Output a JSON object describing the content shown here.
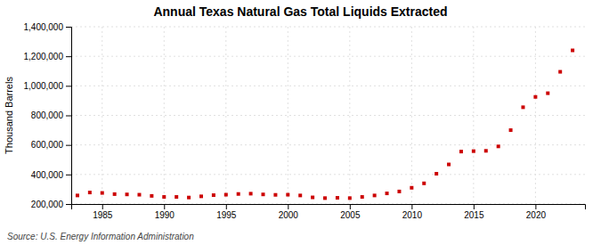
{
  "chart_data": {
    "type": "scatter",
    "title": "Annual Texas Natural Gas Total Liquids Extracted",
    "ylabel": "Thousand Barrels",
    "source": "Source: U.S. Energy Information Administration",
    "x": [
      1983,
      1984,
      1985,
      1986,
      1987,
      1988,
      1989,
      1990,
      1991,
      1992,
      1993,
      1994,
      1995,
      1996,
      1997,
      1998,
      1999,
      2000,
      2001,
      2002,
      2003,
      2004,
      2005,
      2006,
      2007,
      2008,
      2009,
      2010,
      2011,
      2012,
      2013,
      2014,
      2015,
      2016,
      2017,
      2018,
      2019,
      2020,
      2021,
      2022,
      2023
    ],
    "values": [
      258000,
      278000,
      275000,
      267000,
      265000,
      263000,
      255000,
      248000,
      248000,
      244000,
      252000,
      260000,
      263000,
      268000,
      270000,
      265000,
      262000,
      263000,
      258000,
      245000,
      240000,
      242000,
      240000,
      248000,
      258000,
      272000,
      285000,
      310000,
      340000,
      405000,
      468000,
      555000,
      558000,
      560000,
      590000,
      700000,
      855000,
      925000,
      950000,
      1095000,
      1240000
    ],
    "color": "#cc0000",
    "marker": "square",
    "grid": true,
    "xlim": [
      1982.5,
      2024
    ],
    "ylim": [
      200000,
      1400000
    ],
    "xticks": [
      1985,
      1990,
      1995,
      2000,
      2005,
      2010,
      2015,
      2020
    ],
    "yticks": [
      {
        "value": 200000,
        "label": "200,000"
      },
      {
        "value": 400000,
        "label": "400,000"
      },
      {
        "value": 600000,
        "label": "600,000"
      },
      {
        "value": 800000,
        "label": "800,000"
      },
      {
        "value": 1000000,
        "label": "1,000,000"
      },
      {
        "value": 1200000,
        "label": "1,200,000"
      },
      {
        "value": 1400000,
        "label": "1,400,000"
      }
    ]
  }
}
